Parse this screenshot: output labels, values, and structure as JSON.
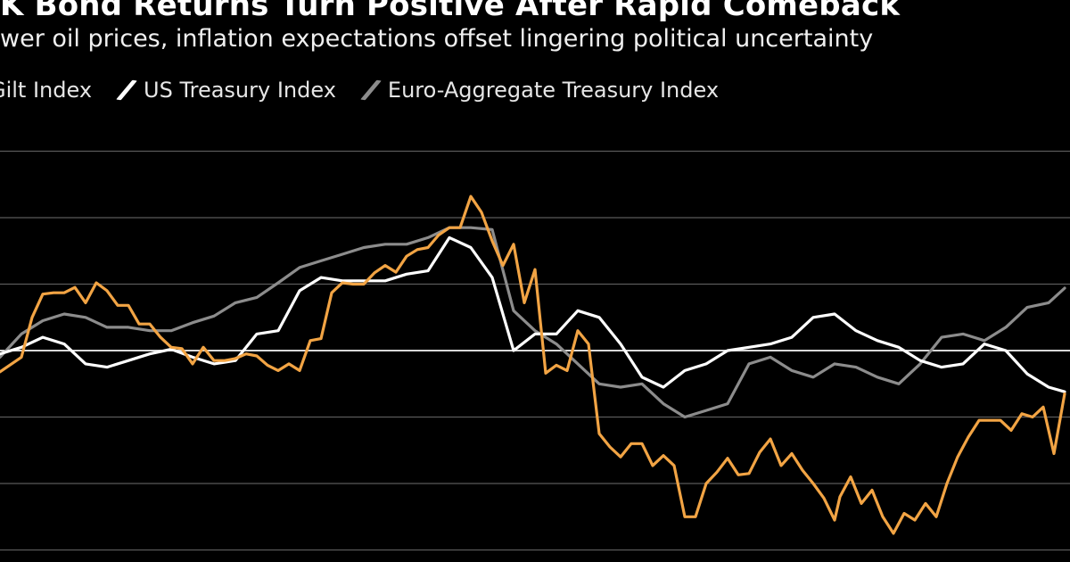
{
  "header": {
    "title": "K Bond Returns Turn Positive After Rapid Comeback",
    "subtitle": "wer oil prices, inflation expectations offset lingering political uncertainty"
  },
  "colors": {
    "background": "#000000",
    "gridline": "#5a5a5a",
    "zeroline": "#d8d8d8",
    "gilt": "#f2a444",
    "us_treasury": "#ffffff",
    "euro_aggregate": "#8c8c8c"
  },
  "chart_data": {
    "type": "line",
    "title": "K Bond Returns Turn Positive After Rapid Comeback",
    "subtitle": "wer oil prices, inflation expectations offset lingering political uncertainty",
    "xlabel": "",
    "ylabel": "",
    "ylim": [
      -3.2,
      3.0
    ],
    "xlim": [
      0,
      200
    ],
    "grid": true,
    "legend_position": "top-left",
    "gridlines": [
      3,
      2,
      1,
      0,
      -1,
      -2,
      -3
    ],
    "series": [
      {
        "name": "Gilt Index",
        "color": "#f2a444",
        "x": [
          0,
          4,
          6,
          8,
          10,
          12,
          14,
          16,
          18,
          20,
          22,
          24,
          26,
          28,
          30,
          32,
          34,
          36,
          38,
          40,
          42,
          44,
          46,
          48,
          50,
          52,
          54,
          56,
          58,
          60,
          62,
          64,
          66,
          68,
          70,
          72,
          74,
          76,
          78,
          80,
          82,
          84,
          86,
          88,
          90,
          92,
          94,
          96,
          98,
          100,
          102,
          104,
          106,
          108,
          110,
          112,
          114,
          116,
          118,
          120,
          122,
          124,
          126,
          128,
          130,
          132,
          134,
          136,
          138,
          140,
          142,
          144,
          146,
          148,
          150,
          152,
          154,
          156,
          157,
          159,
          161,
          163,
          165,
          167,
          169,
          171,
          173,
          175,
          177,
          179,
          181,
          183,
          185,
          187,
          189,
          191,
          193,
          195,
          197,
          199
        ],
        "y": [
          -0.32,
          -0.1,
          0.5,
          0.85,
          0.87,
          0.87,
          0.95,
          0.72,
          1.02,
          0.9,
          0.68,
          0.68,
          0.4,
          0.4,
          0.2,
          0.05,
          0.03,
          -0.2,
          0.05,
          -0.15,
          -0.15,
          -0.12,
          -0.05,
          -0.08,
          -0.22,
          -0.3,
          -0.2,
          -0.3,
          0.15,
          0.18,
          0.87,
          1.02,
          1.0,
          1.0,
          1.17,
          1.28,
          1.18,
          1.42,
          1.52,
          1.55,
          1.74,
          1.85,
          1.85,
          2.32,
          2.08,
          1.65,
          1.28,
          1.6,
          0.72,
          1.22,
          -0.34,
          -0.22,
          -0.3,
          0.3,
          0.1,
          -1.25,
          -1.45,
          -1.6,
          -1.4,
          -1.4,
          -1.73,
          -1.58,
          -1.73,
          -2.5,
          -2.5,
          -2.0,
          -1.83,
          -1.62,
          -1.87,
          -1.85,
          -1.53,
          -1.33,
          -1.73,
          -1.55,
          -1.8,
          -2.0,
          -2.22,
          -2.55,
          -2.2,
          -1.9,
          -2.3,
          -2.1,
          -2.5,
          -2.75,
          -2.45,
          -2.55,
          -2.3,
          -2.5,
          -2.0,
          -1.6,
          -1.3,
          -1.05,
          -1.05,
          -1.05,
          -1.2,
          -0.95,
          -1.0,
          -0.85,
          -1.55,
          -0.65
        ],
        "points_note": ""
      },
      {
        "name": "US Treasury Index",
        "color": "#ffffff",
        "x": [
          0,
          4,
          8,
          12,
          16,
          20,
          24,
          28,
          32,
          36,
          40,
          44,
          48,
          52,
          56,
          60,
          64,
          68,
          72,
          76,
          80,
          84,
          88,
          92,
          96,
          100,
          104,
          108,
          112,
          116,
          120,
          124,
          128,
          132,
          136,
          140,
          144,
          148,
          152,
          156,
          160,
          164,
          168,
          172,
          176,
          180,
          184,
          188,
          192,
          196,
          199
        ],
        "y": [
          -0.05,
          0.05,
          0.2,
          0.1,
          -0.2,
          -0.25,
          -0.15,
          -0.05,
          0.02,
          -0.1,
          -0.2,
          -0.15,
          0.25,
          0.3,
          0.9,
          1.1,
          1.05,
          1.05,
          1.05,
          1.15,
          1.2,
          1.7,
          1.55,
          1.1,
          0.0,
          0.25,
          0.25,
          0.6,
          0.5,
          0.1,
          -0.4,
          -0.55,
          -0.3,
          -0.2,
          0.0,
          0.05,
          0.1,
          0.2,
          0.5,
          0.55,
          0.3,
          0.15,
          0.05,
          -0.15,
          -0.25,
          -0.2,
          0.1,
          0.0,
          -0.35,
          -0.55,
          -0.62
        ],
        "points_note": ""
      },
      {
        "name": "Euro-Aggregate Treasury Index",
        "color": "#8c8c8c",
        "x": [
          0,
          4,
          8,
          12,
          16,
          20,
          24,
          28,
          32,
          36,
          40,
          44,
          48,
          52,
          56,
          60,
          64,
          68,
          72,
          76,
          80,
          84,
          88,
          92,
          96,
          100,
          104,
          108,
          112,
          116,
          120,
          124,
          128,
          132,
          136,
          140,
          144,
          148,
          152,
          156,
          160,
          164,
          168,
          172,
          176,
          180,
          184,
          188,
          192,
          196,
          199
        ],
        "y": [
          -0.1,
          0.25,
          0.45,
          0.55,
          0.5,
          0.35,
          0.35,
          0.3,
          0.3,
          0.42,
          0.52,
          0.72,
          0.8,
          1.02,
          1.25,
          1.35,
          1.45,
          1.55,
          1.6,
          1.6,
          1.7,
          1.85,
          1.85,
          1.82,
          0.6,
          0.3,
          0.1,
          -0.2,
          -0.5,
          -0.55,
          -0.5,
          -0.8,
          -1.0,
          -0.9,
          -0.8,
          -0.2,
          -0.1,
          -0.3,
          -0.4,
          -0.2,
          -0.25,
          -0.4,
          -0.5,
          -0.2,
          0.2,
          0.25,
          0.15,
          0.35,
          0.65,
          0.72,
          0.94
        ],
        "points_note": ""
      }
    ]
  }
}
